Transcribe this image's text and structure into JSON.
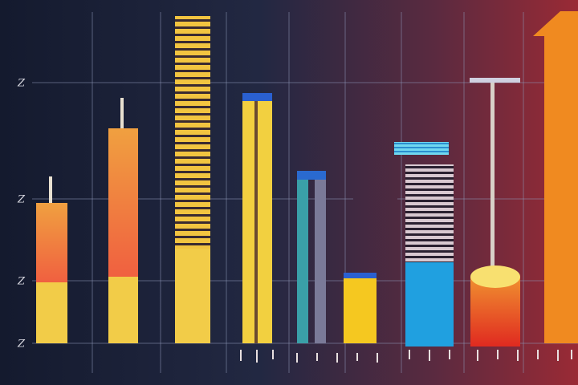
{
  "axis_labels": [
    "Z",
    "Z",
    "Z",
    "Z"
  ]
}
